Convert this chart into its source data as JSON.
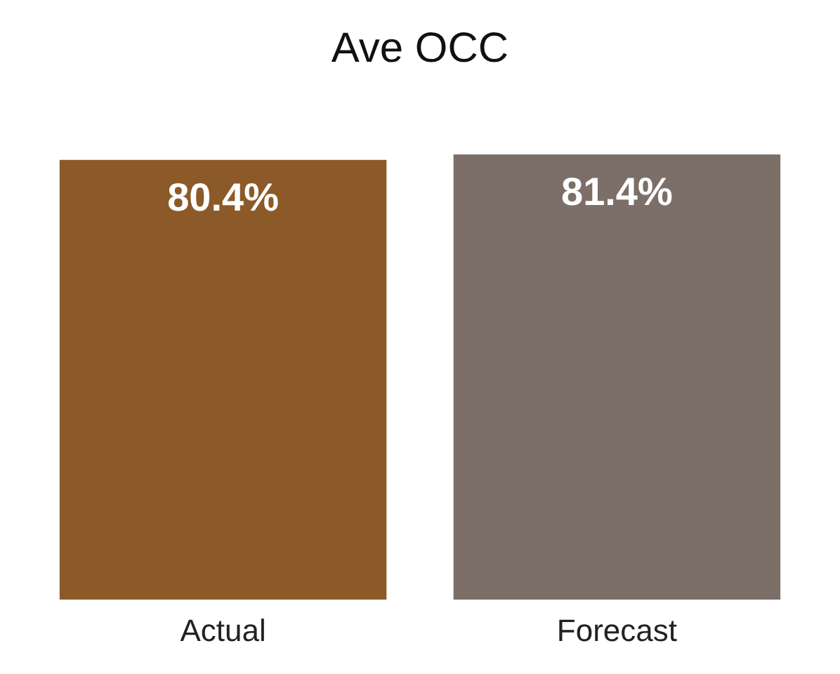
{
  "chart_data": {
    "type": "bar",
    "title": "Ave OCC",
    "categories": [
      "Actual",
      "Forecast"
    ],
    "values": [
      80.4,
      81.4
    ],
    "colors": [
      "#8c5a28",
      "#7b6f67"
    ],
    "value_labels": [
      "80.4%",
      "81.4%"
    ],
    "tick_labels": "x",
    "grid": false
  }
}
